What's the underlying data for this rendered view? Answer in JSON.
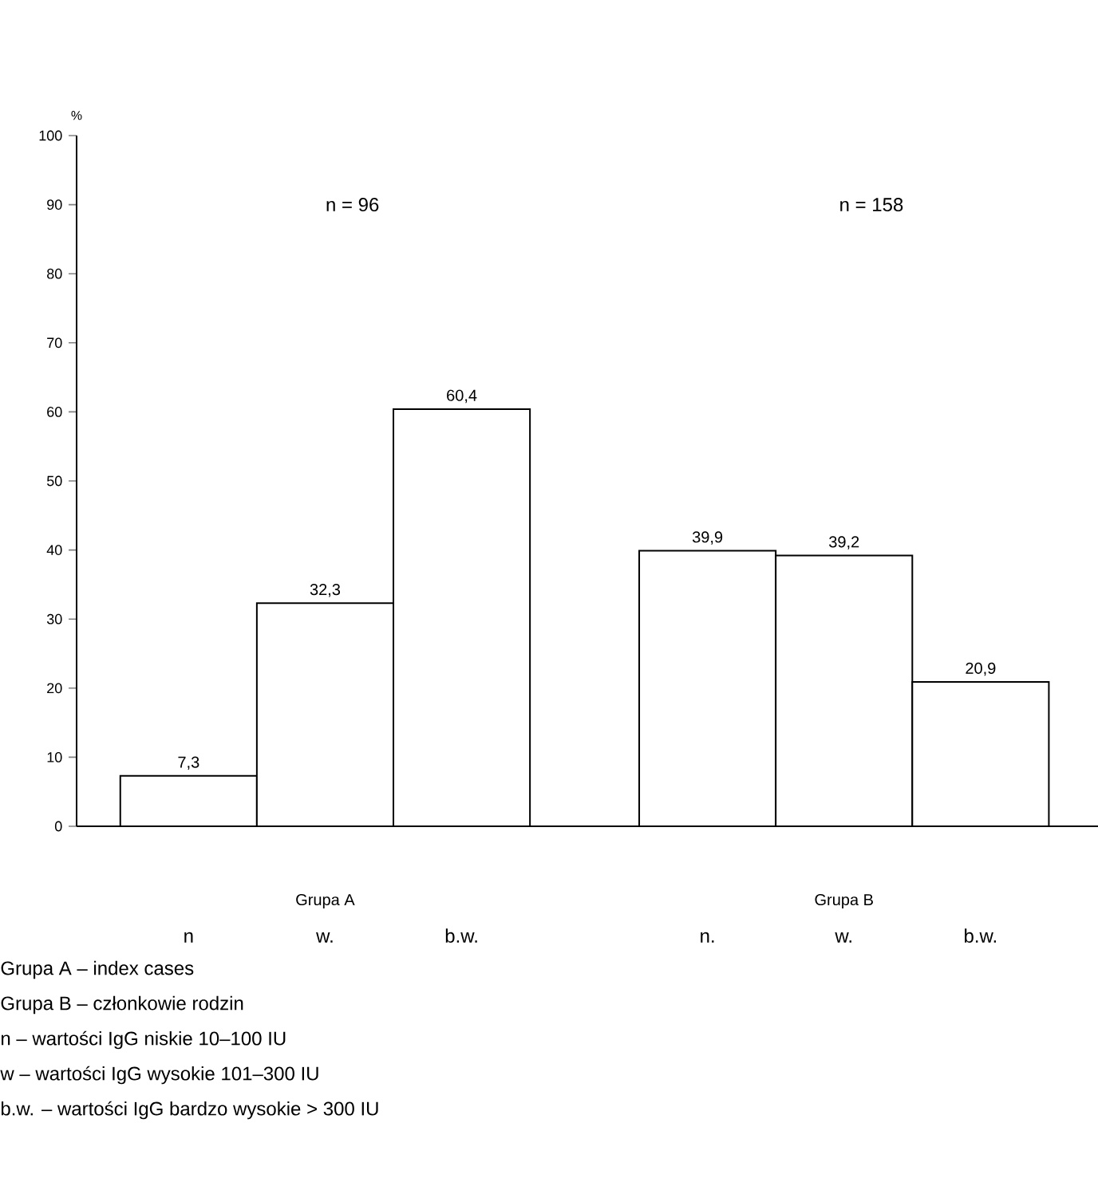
{
  "chart_data": {
    "type": "bar",
    "ylabel": "%",
    "categories": [
      "n",
      "w.",
      "b.w.",
      "n.",
      "w.",
      "b.w."
    ],
    "values": [
      7.3,
      32.3,
      60.4,
      39.9,
      39.2,
      20.9
    ],
    "value_labels": [
      "7,3",
      "32,3",
      "60,4",
      "39,9",
      "39,2",
      "20,9"
    ],
    "color": "#ffffff",
    "ylim": [
      0,
      100
    ],
    "yticks": [
      0,
      10,
      20,
      30,
      40,
      50,
      60,
      70,
      80,
      90,
      100
    ],
    "grid": false,
    "annotations": [
      "n = 96",
      "n = 158",
      "Grupa A",
      "Grupa B",
      "Grupa A – index cases",
      "Grupa B – członkowie rodzin",
      "n      – wartości IgG niskie 10–100 IU",
      "w      – wartości IgG wysokie 101–300 IU",
      "b.w. – wartości IgG bardzo wysokie > 300 IU"
    ]
  }
}
